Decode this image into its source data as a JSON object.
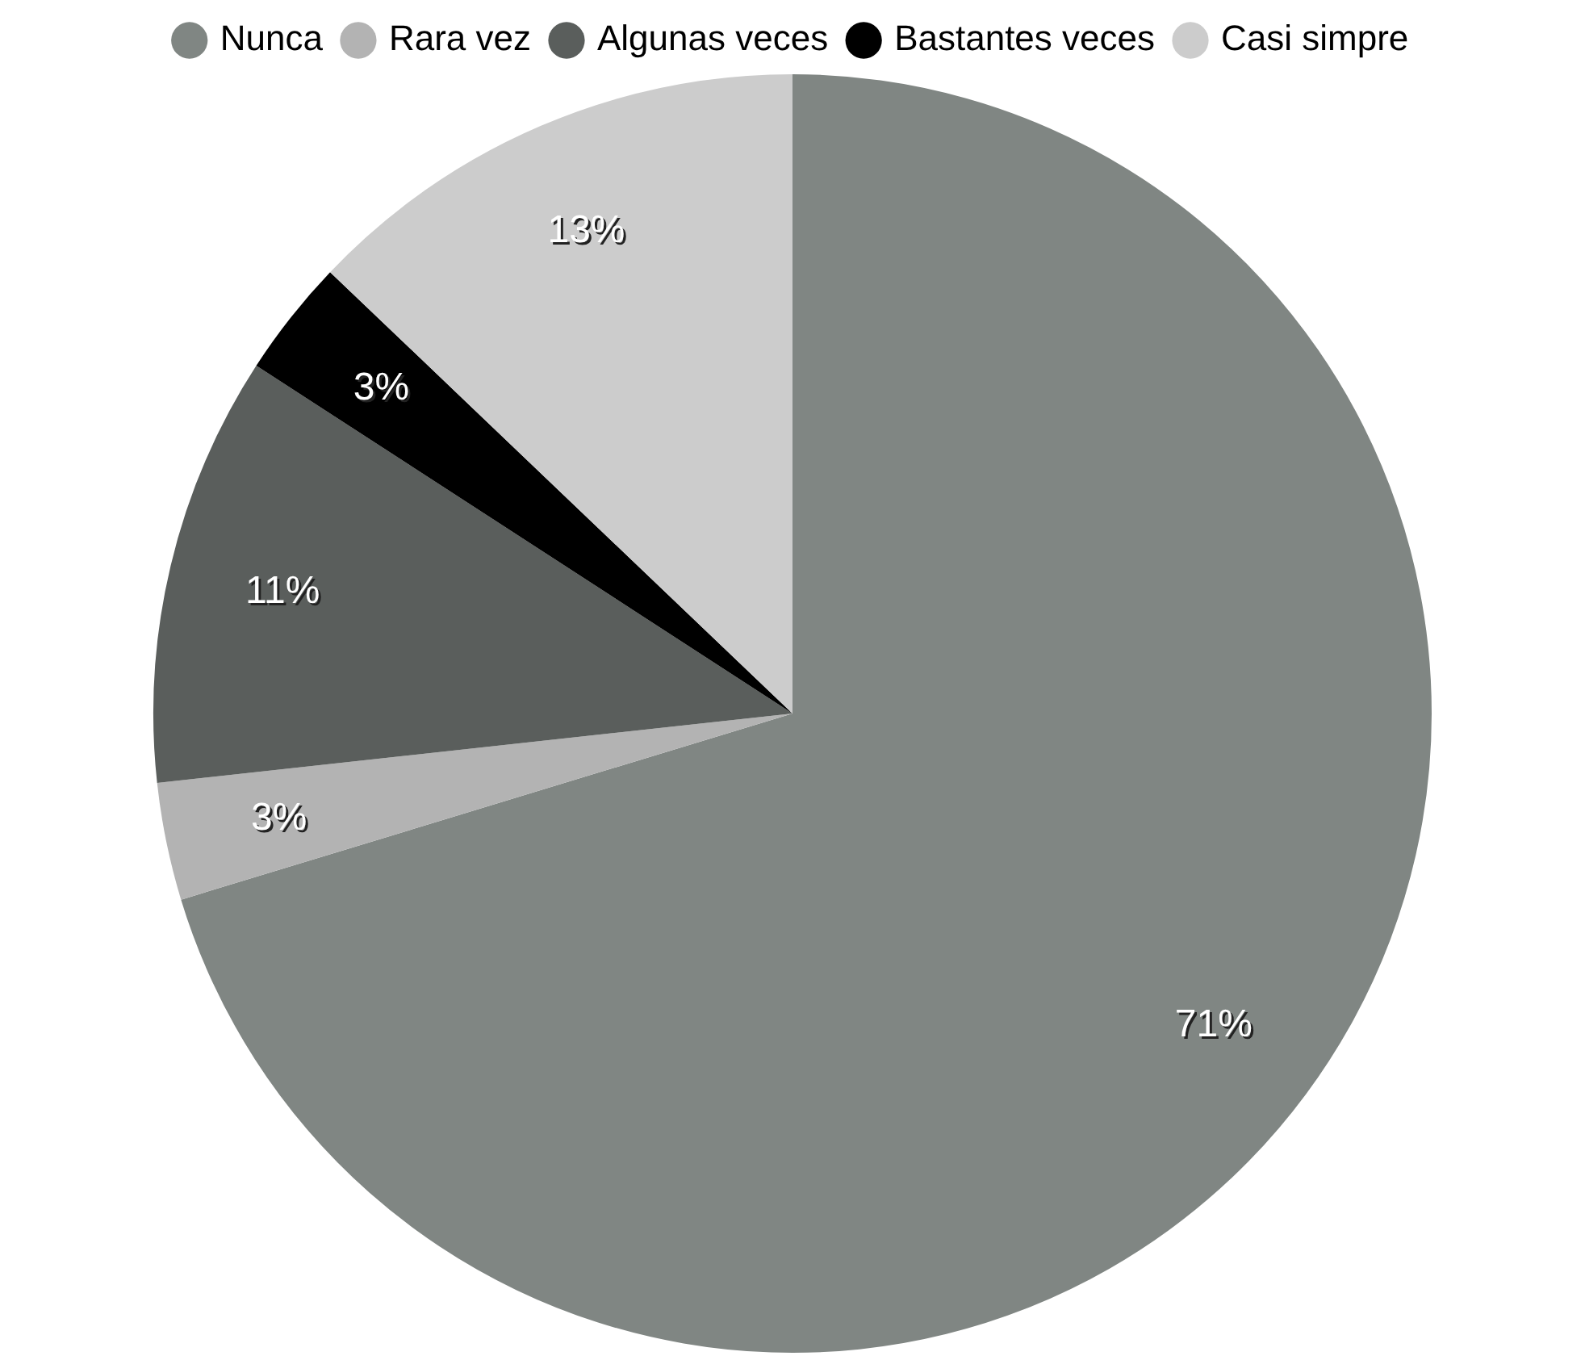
{
  "chart_data": {
    "type": "pie",
    "categories": [
      "Nunca",
      "Rara vez",
      "Algunas veces",
      "Bastantes veces",
      "Casi simpre"
    ],
    "values": [
      71,
      3,
      11,
      3,
      13
    ],
    "value_labels": [
      "71%",
      "3%",
      "11%",
      "3%",
      "13%"
    ],
    "colors": [
      "#808683",
      "#b3b3b3",
      "#5a5e5c",
      "#000000",
      "#cccccc"
    ],
    "legend": "top"
  }
}
